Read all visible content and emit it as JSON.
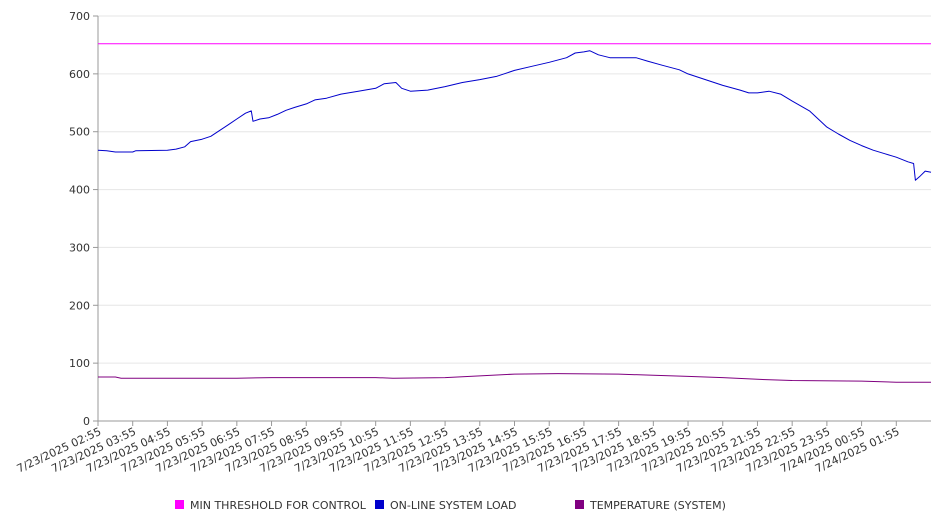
{
  "chart_data": {
    "type": "line",
    "title": "",
    "xlabel": "",
    "ylabel": "",
    "ylim": [
      0,
      700
    ],
    "yticks": [
      0,
      100,
      200,
      300,
      400,
      500,
      600,
      700
    ],
    "grid": true,
    "legend_position": "bottom",
    "x_range": [
      "7/23/2025 02:55",
      "7/24/2025 02:55"
    ],
    "x_ticks": [
      "7/23/2025 02:55",
      "7/23/2025 03:55",
      "7/23/2025 04:55",
      "7/23/2025 05:55",
      "7/23/2025 06:55",
      "7/23/2025 07:55",
      "7/23/2025 08:55",
      "7/23/2025 09:55",
      "7/23/2025 10:55",
      "7/23/2025 11:55",
      "7/23/2025 12:55",
      "7/23/2025 13:55",
      "7/23/2025 14:55",
      "7/23/2025 15:55",
      "7/23/2025 16:55",
      "7/23/2025 17:55",
      "7/23/2025 18:55",
      "7/23/2025 19:55",
      "7/23/2025 20:55",
      "7/23/2025 21:55",
      "7/23/2025 22:55",
      "7/23/2025 23:55",
      "7/24/2025 00:55",
      "7/24/2025 01:55"
    ],
    "series": [
      {
        "name": "MIN THRESHOLD FOR CONTROL",
        "color": "#ff00ff",
        "points": [
          [
            "7/23/2025 02:55",
            652
          ],
          [
            "7/24/2025 02:55",
            652
          ]
        ]
      },
      {
        "name": "ON-LINE SYSTEM LOAD",
        "color": "#0000cc",
        "points": [
          [
            "7/23/2025 02:55",
            468
          ],
          [
            "7/23/2025 03:10",
            467
          ],
          [
            "7/23/2025 03:25",
            465
          ],
          [
            "7/23/2025 03:55",
            465
          ],
          [
            "7/23/2025 04:00",
            467
          ],
          [
            "7/23/2025 04:55",
            468
          ],
          [
            "7/23/2025 05:10",
            470
          ],
          [
            "7/23/2025 05:25",
            474
          ],
          [
            "7/23/2025 05:35",
            483
          ],
          [
            "7/23/2025 05:55",
            487
          ],
          [
            "7/23/2025 06:10",
            492
          ],
          [
            "7/23/2025 06:25",
            502
          ],
          [
            "7/23/2025 06:40",
            512
          ],
          [
            "7/23/2025 06:55",
            522
          ],
          [
            "7/23/2025 07:10",
            532
          ],
          [
            "7/23/2025 07:20",
            536
          ],
          [
            "7/23/2025 07:23",
            518
          ],
          [
            "7/23/2025 07:35",
            522
          ],
          [
            "7/23/2025 07:50",
            524
          ],
          [
            "7/23/2025 08:05",
            530
          ],
          [
            "7/23/2025 08:20",
            537
          ],
          [
            "7/23/2025 08:35",
            542
          ],
          [
            "7/23/2025 08:55",
            548
          ],
          [
            "7/23/2025 09:10",
            555
          ],
          [
            "7/23/2025 09:30",
            558
          ],
          [
            "7/23/2025 09:55",
            565
          ],
          [
            "7/23/2025 10:25",
            570
          ],
          [
            "7/23/2025 10:55",
            575
          ],
          [
            "7/23/2025 11:10",
            583
          ],
          [
            "7/23/2025 11:30",
            585
          ],
          [
            "7/23/2025 11:40",
            575
          ],
          [
            "7/23/2025 11:55",
            570
          ],
          [
            "7/23/2025 12:25",
            572
          ],
          [
            "7/23/2025 12:55",
            578
          ],
          [
            "7/23/2025 13:25",
            585
          ],
          [
            "7/23/2025 13:55",
            590
          ],
          [
            "7/23/2025 14:25",
            596
          ],
          [
            "7/23/2025 14:55",
            606
          ],
          [
            "7/23/2025 15:25",
            613
          ],
          [
            "7/23/2025 15:55",
            620
          ],
          [
            "7/23/2025 16:25",
            628
          ],
          [
            "7/23/2025 16:40",
            636
          ],
          [
            "7/23/2025 16:55",
            638
          ],
          [
            "7/23/2025 17:05",
            640
          ],
          [
            "7/23/2025 17:20",
            633
          ],
          [
            "7/23/2025 17:40",
            628
          ],
          [
            "7/23/2025 17:55",
            628
          ],
          [
            "7/23/2025 18:25",
            628
          ],
          [
            "7/23/2025 18:45",
            622
          ],
          [
            "7/23/2025 19:10",
            615
          ],
          [
            "7/23/2025 19:40",
            607
          ],
          [
            "7/23/2025 19:55",
            600
          ],
          [
            "7/23/2025 20:25",
            590
          ],
          [
            "7/23/2025 20:55",
            580
          ],
          [
            "7/23/2025 21:25",
            572
          ],
          [
            "7/23/2025 21:40",
            567
          ],
          [
            "7/23/2025 21:55",
            567
          ],
          [
            "7/23/2025 22:15",
            570
          ],
          [
            "7/23/2025 22:35",
            565
          ],
          [
            "7/23/2025 22:55",
            553
          ],
          [
            "7/23/2025 23:25",
            536
          ],
          [
            "7/23/2025 23:40",
            522
          ],
          [
            "7/23/2025 23:55",
            508
          ],
          [
            "7/24/2025 00:15",
            496
          ],
          [
            "7/24/2025 00:35",
            485
          ],
          [
            "7/24/2025 00:55",
            476
          ],
          [
            "7/24/2025 01:15",
            468
          ],
          [
            "7/24/2025 01:35",
            462
          ],
          [
            "7/24/2025 01:55",
            456
          ],
          [
            "7/24/2025 02:15",
            448
          ],
          [
            "7/24/2025 02:25",
            445
          ],
          [
            "7/24/2025 02:28",
            416
          ],
          [
            "7/24/2025 02:35",
            422
          ],
          [
            "7/24/2025 02:45",
            432
          ],
          [
            "7/24/2025 02:55",
            430
          ]
        ]
      },
      {
        "name": "TEMPERATURE (SYSTEM)",
        "color": "#800080",
        "points": [
          [
            "7/23/2025 02:55",
            76
          ],
          [
            "7/23/2025 03:25",
            76
          ],
          [
            "7/23/2025 03:35",
            74
          ],
          [
            "7/23/2025 05:55",
            74
          ],
          [
            "7/23/2025 06:55",
            74
          ],
          [
            "7/23/2025 07:55",
            75
          ],
          [
            "7/23/2025 10:55",
            75
          ],
          [
            "7/23/2025 11:25",
            74
          ],
          [
            "7/23/2025 12:55",
            75
          ],
          [
            "7/23/2025 13:55",
            78
          ],
          [
            "7/23/2025 14:55",
            81
          ],
          [
            "7/23/2025 16:10",
            82
          ],
          [
            "7/23/2025 17:55",
            81
          ],
          [
            "7/23/2025 18:55",
            79
          ],
          [
            "7/23/2025 19:55",
            77
          ],
          [
            "7/23/2025 20:55",
            75
          ],
          [
            "7/23/2025 21:55",
            72
          ],
          [
            "7/23/2025 22:55",
            70
          ],
          [
            "7/24/2025 00:55",
            69
          ],
          [
            "7/24/2025 01:55",
            67
          ],
          [
            "7/24/2025 02:55",
            67
          ]
        ]
      }
    ]
  }
}
